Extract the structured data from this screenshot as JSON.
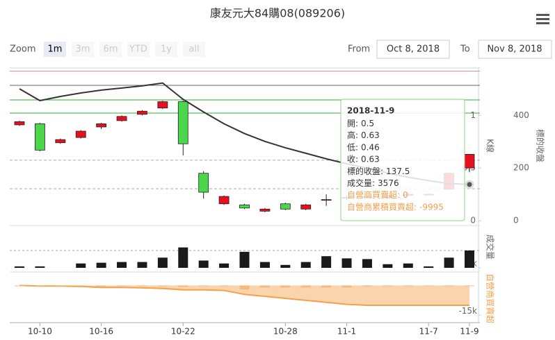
{
  "chart_data": {
    "type": "stock",
    "title": "康友元大84購08(089206)",
    "range_selector": {
      "label": "Zoom",
      "buttons": [
        "1m",
        "3m",
        "6m",
        "YTD",
        "1y",
        "all"
      ],
      "selected": 0,
      "from_label": "From",
      "from": "Oct 8, 2018",
      "to_label": "To",
      "to": "Nov 8, 2018"
    },
    "categories": [
      null,
      "10-10",
      null,
      null,
      "10-16",
      null,
      null,
      null,
      "10-22",
      null,
      null,
      null,
      null,
      "10-28",
      null,
      null,
      "11-1",
      null,
      null,
      null,
      "11-7",
      null,
      "11-9"
    ],
    "candles": {
      "name": "K線",
      "up_color": "#e8101e",
      "down_color": "#4cd64c",
      "open": [
        0.91,
        0.92,
        0.74,
        0.79,
        0.89,
        0.95,
        1.01,
        1.07,
        1.13,
        0.45,
        0.16,
        0.15,
        0.09,
        0.16,
        0.11,
        0.2,
        0.22,
        0.23,
        0.22,
        0.24,
        0.25,
        0.3,
        0.5
      ],
      "high": [
        0.95,
        0.93,
        0.78,
        0.86,
        0.93,
        1.0,
        1.05,
        1.14,
        1.14,
        0.47,
        0.24,
        0.16,
        0.12,
        0.17,
        0.16,
        0.25,
        0.24,
        0.24,
        0.26,
        0.27,
        0.26,
        0.46,
        0.63
      ],
      "low": [
        0.9,
        0.66,
        0.73,
        0.78,
        0.87,
        0.94,
        1.0,
        1.06,
        0.62,
        0.21,
        0.15,
        0.11,
        0.08,
        0.1,
        0.1,
        0.14,
        0.2,
        0.21,
        0.21,
        0.23,
        0.24,
        0.29,
        0.46
      ],
      "close": [
        0.94,
        0.67,
        0.77,
        0.85,
        0.92,
        0.99,
        1.04,
        1.13,
        0.73,
        0.27,
        0.23,
        0.12,
        0.11,
        0.11,
        0.15,
        0.2,
        0.22,
        0.22,
        0.24,
        0.25,
        0.25,
        0.45,
        0.63
      ]
    },
    "ylim": [
      0,
      1.45
    ],
    "yticks": [
      0,
      0.5,
      1
    ],
    "plot_lines": [
      {
        "value": 1.42,
        "color": "#e88a8a",
        "dash": false
      },
      {
        "value": 1.285,
        "color": "#666666",
        "dash": false
      },
      {
        "value": 1.147,
        "color": "#3aa83a",
        "dash": false
      },
      {
        "value": 1.022,
        "color": "#3aa83a",
        "dash": false
      },
      {
        "value": 0.574,
        "color": "#aaaaaa",
        "dash": true
      },
      {
        "value": 0.303,
        "color": "#aaaaaa",
        "dash": true
      }
    ],
    "underlying": {
      "name": "標的收盤",
      "color": "#333333",
      "axis": "y2",
      "values": [
        501,
        456,
        472,
        485,
        496,
        504,
        512,
        523,
        461,
        413,
        368,
        331,
        301,
        277,
        256,
        235,
        216,
        200,
        181,
        165,
        152,
        141,
        137.5
      ]
    },
    "y2lim": [
      0,
      580
    ],
    "y2ticks": [
      0,
      200,
      400
    ],
    "volume": {
      "name": "成交量",
      "color": "#1a1a1a",
      "values": [
        300,
        300,
        0,
        900,
        1050,
        1200,
        1200,
        2100,
        4200,
        1500,
        900,
        3300,
        1200,
        600,
        1200,
        2400,
        1950,
        1800,
        750,
        900,
        300,
        2100,
        3576
      ],
      "ylim": [
        0,
        8000
      ],
      "yticks": [
        {
          "value": 0,
          "label": "0k"
        }
      ]
    },
    "dealer": {
      "name": "自營商買賣超",
      "color": "#f8b97e",
      "values": [
        0,
        -300,
        0,
        -200,
        -500,
        0,
        -200,
        -300,
        -700,
        0,
        -300,
        -2000,
        -1000,
        -1000,
        -1000,
        -1000,
        -1000,
        -495,
        0,
        0,
        0,
        0,
        0
      ]
    },
    "dealer_cumulative": {
      "name": "自營商累積買賣超",
      "color": "#f5a04a",
      "values": [
        0,
        -300,
        -300,
        -500,
        -1000,
        -1000,
        -1200,
        -1500,
        -2200,
        -2200,
        -2500,
        -4500,
        -5500,
        -6500,
        -7500,
        -8500,
        -9500,
        -9995,
        -9995,
        -9995,
        -9995,
        -9995,
        -9995
      ]
    },
    "dealer_ylim": [
      -17000,
      4000
    ],
    "dealer_yticks": [
      {
        "value": -15000,
        "label": "-15k"
      }
    ],
    "tooltip": {
      "date": "2018-11-9",
      "labels": [
        "開:",
        "高:",
        "低:",
        "收:",
        "標的收盤:",
        "成交量:",
        "自營商買賣超:",
        "自營商累積買賣超:"
      ]
    }
  }
}
